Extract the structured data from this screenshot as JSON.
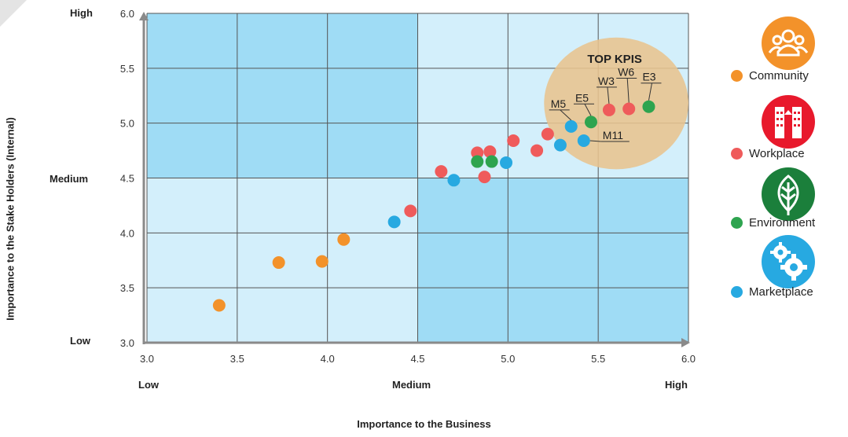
{
  "chart_data": {
    "type": "scatter",
    "xlabel": "Importance to the Business",
    "ylabel": "Importance to the Stake Holders (Internal)",
    "xlim": [
      3.0,
      6.0
    ],
    "ylim": [
      3.0,
      6.0
    ],
    "x_ticks": [
      "3.0",
      "3.5",
      "4.0",
      "4.5",
      "5.0",
      "5.5",
      "6.0"
    ],
    "y_ticks": [
      "3.0",
      "3.5",
      "4.0",
      "4.5",
      "5.0",
      "5.5",
      "6.0"
    ],
    "x_levels": [
      "Low",
      "Medium",
      "High"
    ],
    "y_levels": [
      "Low",
      "Medium",
      "High"
    ],
    "grid": true,
    "legend_position": "right",
    "highlight": {
      "label": "TOP KPIS",
      "center": [
        5.6,
        5.18
      ],
      "radius_x": 0.4,
      "radius_y": 0.6,
      "color": "#e8c48e"
    },
    "series": [
      {
        "name": "Community",
        "color": "#f3922a",
        "points": [
          {
            "x": 3.4,
            "y": 3.34
          },
          {
            "x": 3.73,
            "y": 3.73
          },
          {
            "x": 3.97,
            "y": 3.74
          },
          {
            "x": 4.09,
            "y": 3.94
          }
        ]
      },
      {
        "name": "Workplace",
        "color": "#ef5b5b",
        "points": [
          {
            "x": 4.46,
            "y": 4.2
          },
          {
            "x": 4.63,
            "y": 4.56
          },
          {
            "x": 4.83,
            "y": 4.73
          },
          {
            "x": 4.9,
            "y": 4.74
          },
          {
            "x": 4.87,
            "y": 4.51
          },
          {
            "x": 5.03,
            "y": 4.84
          },
          {
            "x": 5.16,
            "y": 4.75
          },
          {
            "x": 5.22,
            "y": 4.9
          },
          {
            "x": 5.56,
            "y": 5.12,
            "label": "W3"
          },
          {
            "x": 5.67,
            "y": 5.13,
            "label": "W6"
          }
        ]
      },
      {
        "name": "Environment",
        "color": "#2ea44f",
        "points": [
          {
            "x": 4.83,
            "y": 4.65
          },
          {
            "x": 4.91,
            "y": 4.65
          },
          {
            "x": 5.46,
            "y": 5.01,
            "label": "E5"
          },
          {
            "x": 5.78,
            "y": 5.15,
            "label": "E3"
          }
        ]
      },
      {
        "name": "Marketplace",
        "color": "#27a9e1",
        "points": [
          {
            "x": 4.37,
            "y": 4.1
          },
          {
            "x": 4.7,
            "y": 4.48
          },
          {
            "x": 4.99,
            "y": 4.64
          },
          {
            "x": 5.29,
            "y": 4.8
          },
          {
            "x": 5.35,
            "y": 4.97,
            "label": "M5"
          },
          {
            "x": 5.42,
            "y": 4.84,
            "label": "M11"
          }
        ]
      }
    ]
  },
  "legend": [
    {
      "label": "Community",
      "icon": "people-group-icon",
      "color": "#f3922a",
      "badge_color": "#f3922a"
    },
    {
      "label": "Workplace",
      "icon": "building-icon",
      "color": "#ef5b5b",
      "badge_color": "#e8192c"
    },
    {
      "label": "Environment",
      "icon": "leaf-icon",
      "color": "#2ea44f",
      "badge_color": "#1b7f3b"
    },
    {
      "label": "Marketplace",
      "icon": "gears-icon",
      "color": "#27a9e1",
      "badge_color": "#27a9e1"
    }
  ]
}
